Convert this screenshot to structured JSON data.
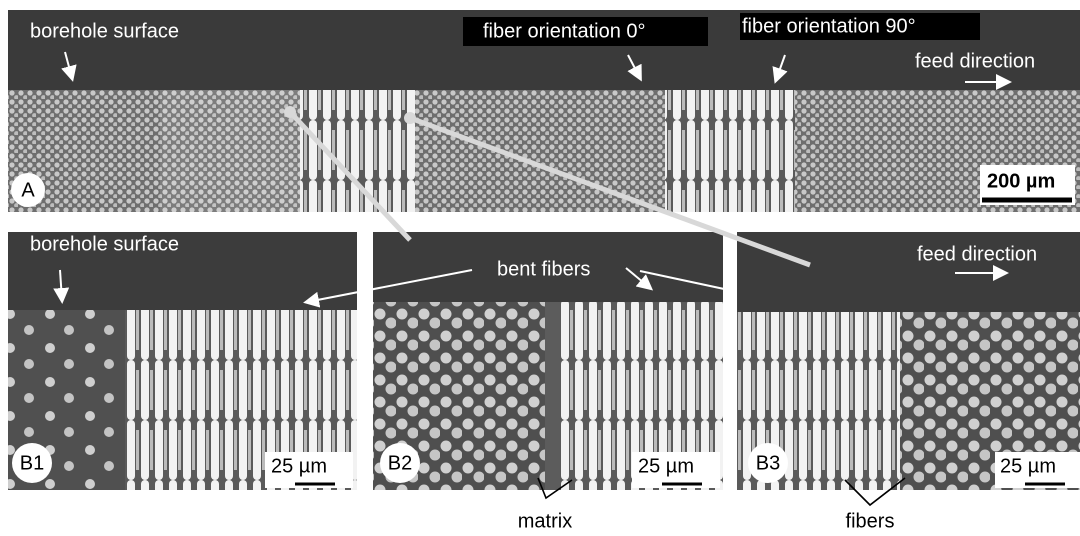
{
  "panel_a": {
    "label": "A",
    "annotations": {
      "surface": "borehole surface",
      "orientation_0": "fiber orientation 0°",
      "orientation_90": "fiber orientation 90°",
      "feed": "feed direction"
    },
    "scale": "200 µm"
  },
  "panels_b": [
    {
      "label": "B1",
      "annotation": "borehole surface",
      "scale": "25 µm"
    },
    {
      "label": "B2",
      "annotation": "bent fibers",
      "scale": "25 µm"
    },
    {
      "label": "B3",
      "annotation": "feed direction",
      "scale": "25 µm"
    }
  ],
  "callouts": {
    "matrix": "matrix",
    "fibers": "fibers"
  }
}
